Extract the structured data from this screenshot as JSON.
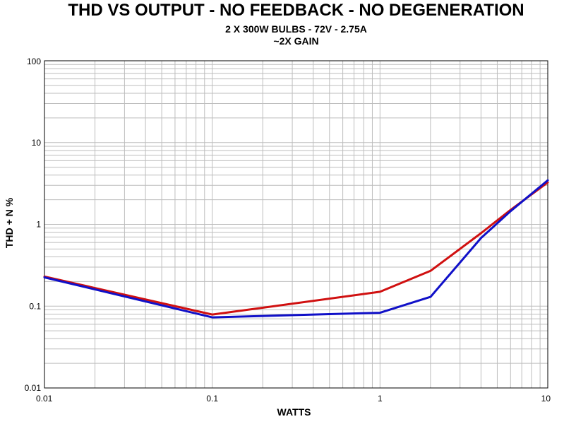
{
  "chart_data": {
    "type": "line",
    "title": "THD VS OUTPUT - NO FEEDBACK - NO DEGENERATION",
    "subtitle_lines": [
      "2 X 300W BULBS - 72V - 2.75A",
      "~2X GAIN"
    ],
    "xlabel": "WATTS",
    "ylabel": "THD + N %",
    "x_scale": "log",
    "y_scale": "log",
    "xlim": [
      0.01,
      10
    ],
    "ylim": [
      0.01,
      100
    ],
    "x_ticks": [
      "0.01",
      "0.1",
      "1",
      "10"
    ],
    "y_ticks": [
      "0.01",
      "0.1",
      "1",
      "10",
      "100"
    ],
    "grid": true,
    "legend": "none",
    "series": [
      {
        "color": "#d01010",
        "x": [
          0.01,
          0.1,
          1,
          2,
          4,
          6,
          10
        ],
        "y": [
          0.23,
          0.079,
          0.15,
          0.27,
          0.78,
          1.5,
          3.25
        ]
      },
      {
        "color": "#1010c8",
        "x": [
          0.01,
          0.1,
          0.5,
          1,
          2,
          4,
          6,
          10
        ],
        "y": [
          0.225,
          0.073,
          0.08,
          0.083,
          0.13,
          0.68,
          1.45,
          3.45
        ]
      }
    ]
  }
}
